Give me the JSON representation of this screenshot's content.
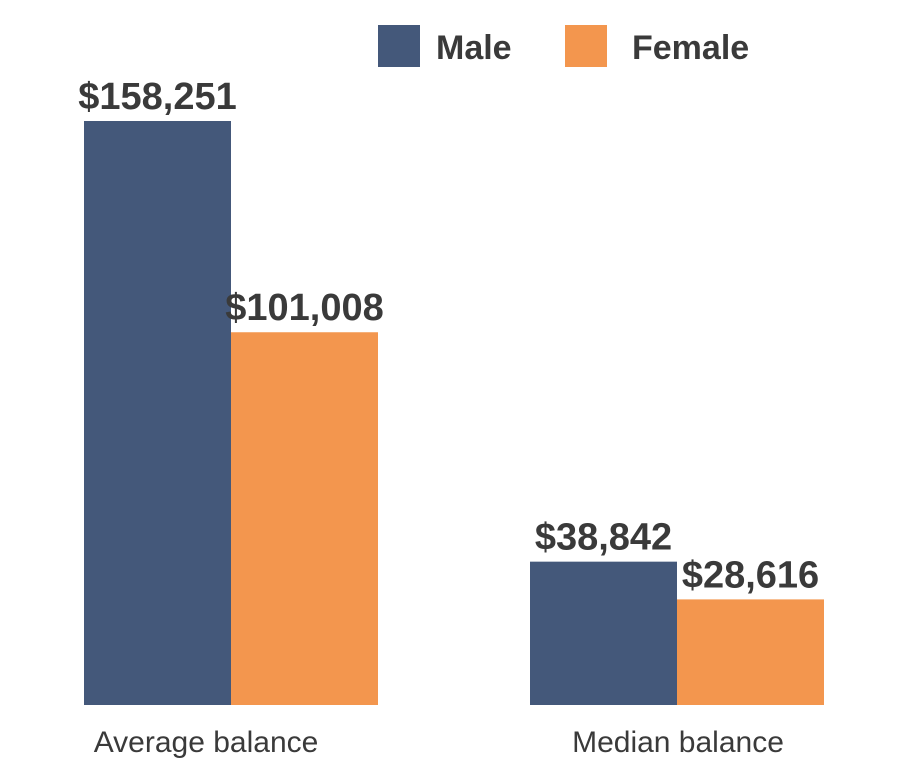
{
  "chart_data": {
    "type": "bar",
    "categories": [
      "Average balance",
      "Median balance"
    ],
    "series": [
      {
        "name": "Male",
        "values": [
          158251,
          38842
        ],
        "labels": [
          "$158,251",
          "$38,842"
        ],
        "color": "#44587a"
      },
      {
        "name": "Female",
        "values": [
          101008,
          28616
        ],
        "labels": [
          "$101,008",
          "$28,616"
        ],
        "color": "#f3964e"
      }
    ],
    "ylim": [
      0,
      158251
    ],
    "grid": false,
    "legend": "top-right"
  }
}
